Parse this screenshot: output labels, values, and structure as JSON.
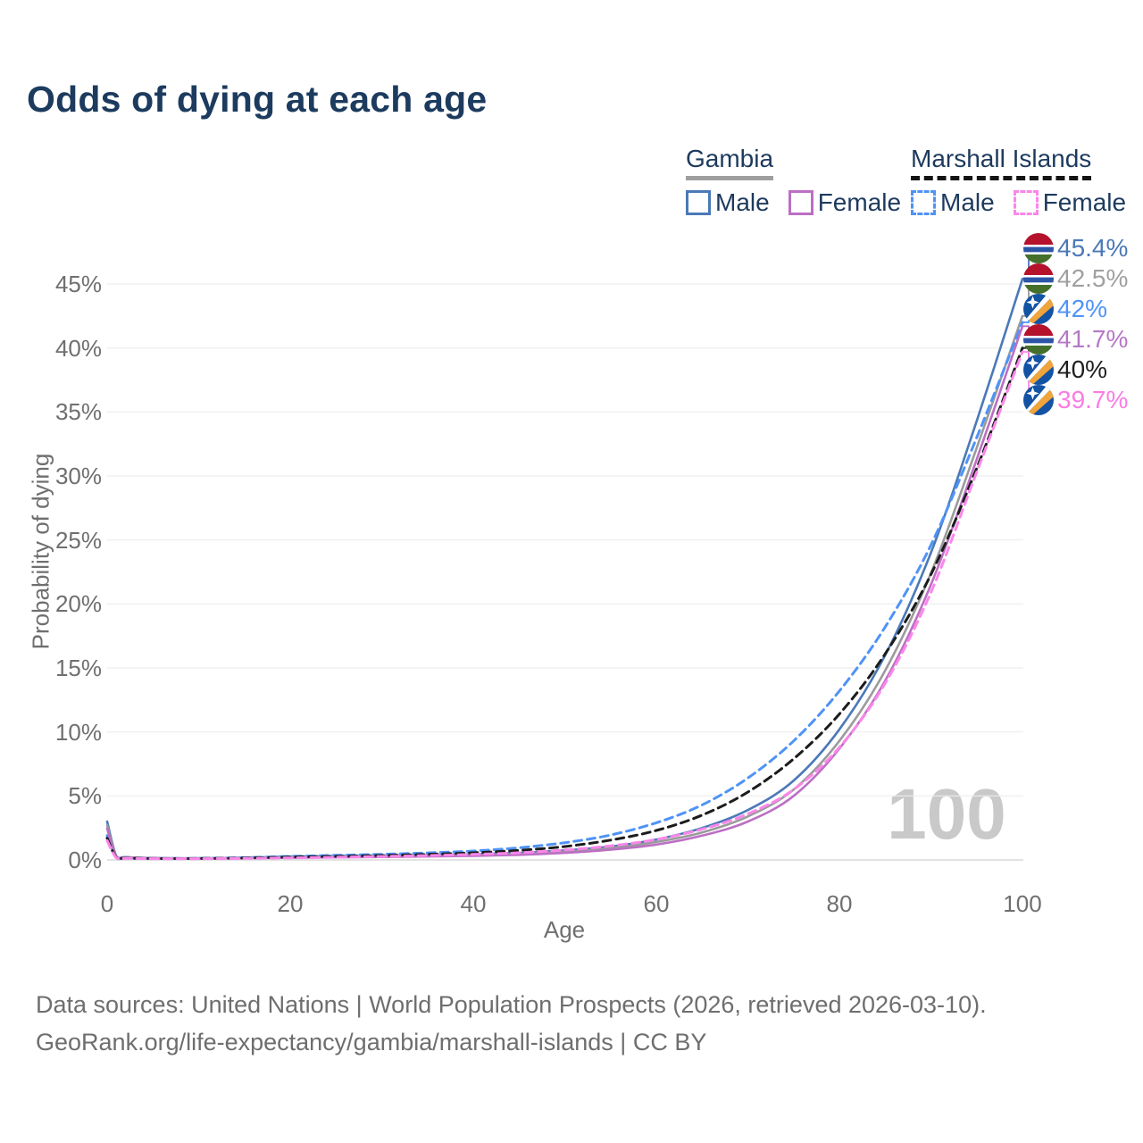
{
  "title": "Odds of dying at each age",
  "legend": {
    "groups": [
      {
        "name": "Gambia",
        "underline": "solid",
        "underline_color": "#9e9e9e",
        "items": [
          {
            "label": "Male",
            "color": "#4b79b7"
          },
          {
            "label": "Female",
            "color": "#bc6fc4"
          }
        ]
      },
      {
        "name": "Marshall Islands",
        "underline": "dashed",
        "underline_color": "#141414",
        "items": [
          {
            "label": "Male",
            "color": "#4f93f6"
          },
          {
            "label": "Female",
            "color": "#fb86ea"
          }
        ]
      }
    ]
  },
  "watermark": "100",
  "footer": {
    "line1": "Data sources: United Nations | World Population Prospects (2026, retrieved 2026-03-10).",
    "line2": "GeoRank.org/life-expectancy/gambia/marshall-islands | CC BY"
  },
  "chart_data": {
    "type": "line",
    "title": "Odds of dying at each age",
    "xlabel": "Age",
    "ylabel": "Probability of dying",
    "xlim": [
      0,
      100
    ],
    "ylim": [
      0,
      47
    ],
    "grid": "horizontal",
    "legend_position": "top-right",
    "x_ticks": [
      {
        "value": 0,
        "label": "0"
      },
      {
        "value": 20,
        "label": "20"
      },
      {
        "value": 40,
        "label": "40"
      },
      {
        "value": 60,
        "label": "60"
      },
      {
        "value": 80,
        "label": "80"
      },
      {
        "value": 100,
        "label": "100"
      }
    ],
    "y_ticks": [
      {
        "value": 0,
        "label": "0%"
      },
      {
        "value": 5,
        "label": "5%"
      },
      {
        "value": 10,
        "label": "10%"
      },
      {
        "value": 15,
        "label": "15%"
      },
      {
        "value": 20,
        "label": "20%"
      },
      {
        "value": 25,
        "label": "25%"
      },
      {
        "value": 30,
        "label": "30%"
      },
      {
        "value": 35,
        "label": "35%"
      },
      {
        "value": 40,
        "label": "40%"
      },
      {
        "value": 45,
        "label": "45%"
      }
    ],
    "x": [
      0,
      1,
      2,
      5,
      10,
      15,
      20,
      25,
      30,
      35,
      40,
      45,
      50,
      55,
      60,
      65,
      70,
      75,
      80,
      85,
      90,
      95,
      100
    ],
    "series": [
      {
        "name": "Gambia Male",
        "country": "Gambia",
        "sex": "Male",
        "style": "solid",
        "color": "#4b79b7",
        "flag": "gambia",
        "end_label": "45.4%",
        "label_color": "#4b79b7",
        "values": [
          3.0,
          0.3,
          0.22,
          0.15,
          0.13,
          0.17,
          0.25,
          0.3,
          0.33,
          0.38,
          0.45,
          0.55,
          0.75,
          1.05,
          1.6,
          2.5,
          3.9,
          6.2,
          10.2,
          16.0,
          24.0,
          34.3,
          45.4
        ]
      },
      {
        "name": "Gambia Both sexes",
        "country": "Gambia",
        "sex": "Both",
        "style": "solid",
        "color": "#9b9b9b",
        "flag": "gambia",
        "end_label": "42.5%",
        "label_color": "#a0a0a0",
        "values": [
          2.7,
          0.27,
          0.2,
          0.14,
          0.12,
          0.15,
          0.21,
          0.25,
          0.28,
          0.32,
          0.38,
          0.47,
          0.64,
          0.92,
          1.4,
          2.15,
          3.4,
          5.5,
          9.3,
          14.8,
          22.4,
          32.2,
          42.5
        ]
      },
      {
        "name": "Marshall Islands Male",
        "country": "Marshall Islands",
        "sex": "Male",
        "style": "dashed",
        "color": "#4f93f6",
        "flag": "marshall-islands",
        "end_label": "42%",
        "label_color": "#4f93f6",
        "values": [
          1.9,
          0.2,
          0.15,
          0.12,
          0.12,
          0.18,
          0.28,
          0.36,
          0.44,
          0.55,
          0.7,
          0.95,
          1.35,
          1.95,
          2.9,
          4.3,
          6.4,
          9.3,
          13.2,
          18.2,
          24.6,
          33.0,
          42.0
        ]
      },
      {
        "name": "Gambia Female",
        "country": "Gambia",
        "sex": "Female",
        "style": "solid",
        "color": "#bc6fc4",
        "flag": "gambia",
        "end_label": "41.7%",
        "label_color": "#b678c6",
        "values": [
          2.45,
          0.24,
          0.18,
          0.13,
          0.11,
          0.13,
          0.17,
          0.2,
          0.23,
          0.27,
          0.32,
          0.4,
          0.55,
          0.8,
          1.2,
          1.9,
          3.0,
          5.0,
          8.7,
          14.0,
          21.5,
          31.3,
          41.7
        ]
      },
      {
        "name": "Marshall Islands Both sexes",
        "country": "Marshall Islands",
        "sex": "Both",
        "style": "dashed",
        "color": "#1c1c1c",
        "flag": "marshall-islands",
        "end_label": "40%",
        "label_color": "#1f1f1f",
        "values": [
          1.7,
          0.18,
          0.14,
          0.11,
          0.11,
          0.15,
          0.22,
          0.28,
          0.35,
          0.44,
          0.56,
          0.75,
          1.05,
          1.55,
          2.3,
          3.5,
          5.3,
          7.9,
          11.4,
          16.1,
          22.3,
          30.6,
          40.0
        ]
      },
      {
        "name": "Marshall Islands Female",
        "country": "Marshall Islands",
        "sex": "Female",
        "style": "dashed",
        "color": "#fb86ea",
        "flag": "marshall-islands",
        "end_label": "39.7%",
        "label_color": "#fb7ce4",
        "values": [
          1.5,
          0.16,
          0.12,
          0.1,
          0.1,
          0.12,
          0.16,
          0.21,
          0.27,
          0.34,
          0.43,
          0.56,
          0.78,
          1.1,
          1.6,
          2.4,
          3.6,
          5.5,
          8.8,
          13.8,
          20.9,
          30.3,
          39.7
        ]
      }
    ]
  }
}
